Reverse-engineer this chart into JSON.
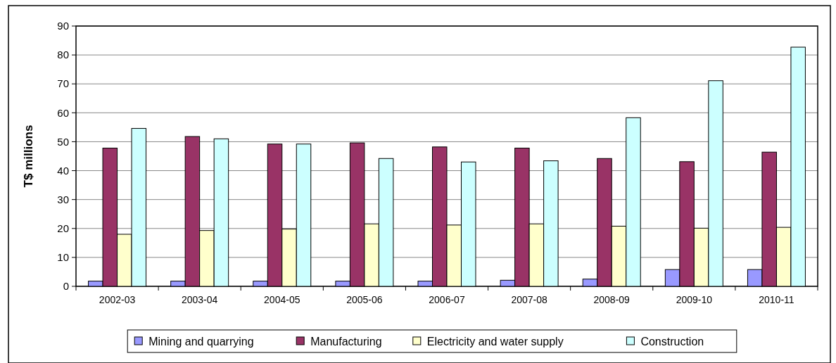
{
  "chart_data": {
    "type": "bar",
    "ylabel": "T$ millions",
    "categories": [
      "2002-03",
      "2003-04",
      "2004-05",
      "2005-06",
      "2006-07",
      "2007-08",
      "2008-09",
      "2009-10",
      "2010-11"
    ],
    "series": [
      {
        "name": "Mining and quarrying",
        "color": "#9999ff",
        "values": [
          1.8,
          1.8,
          1.8,
          1.8,
          1.8,
          2.1,
          2.5,
          5.8,
          5.8
        ]
      },
      {
        "name": "Manufacturing",
        "color": "#993366",
        "values": [
          47.8,
          51.8,
          49.2,
          49.6,
          48.2,
          47.8,
          44.2,
          43.1,
          46.4
        ]
      },
      {
        "name": "Electricity and water supply",
        "color": "#ffffcc",
        "values": [
          18.0,
          19.3,
          19.8,
          21.6,
          21.2,
          21.6,
          20.8,
          20.1,
          20.4
        ]
      },
      {
        "name": "Construction",
        "color": "#ccffff",
        "values": [
          54.6,
          51.0,
          49.2,
          44.2,
          43.0,
          43.4,
          58.3,
          71.1,
          82.7
        ]
      }
    ],
    "ylim": [
      0,
      90
    ],
    "yticks": [
      0,
      10,
      20,
      30,
      40,
      50,
      60,
      70,
      80,
      90
    ],
    "grid": "y",
    "legend": "bottom"
  }
}
